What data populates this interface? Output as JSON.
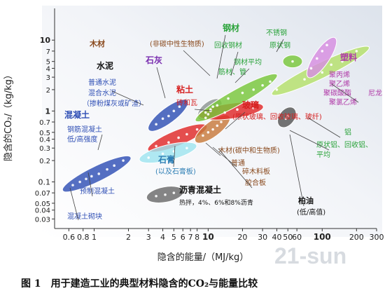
{
  "chart_data": {
    "type": "scatter",
    "xlabel": "隐含的能量/（MJ/kg）",
    "ylabel": "隐含的CO₂/（kg/kg）",
    "x_scale": "log",
    "y_scale": "log",
    "xlim": [
      0.45,
      300
    ],
    "ylim": [
      0.022,
      28
    ],
    "x_ticks": [
      0.6,
      0.8,
      1,
      2,
      3,
      4,
      5,
      6,
      7,
      8,
      10,
      20,
      30,
      40,
      50,
      60,
      100,
      200,
      300
    ],
    "x_tick_labels": [
      "0.6",
      "0.8",
      "1",
      "2",
      "3",
      "4",
      "5",
      "6",
      "7",
      "8",
      "10",
      "20",
      "30",
      "40",
      "50",
      "60",
      "100",
      "200",
      "300"
    ],
    "y_ticks": [
      0.03,
      0.04,
      0.05,
      0.07,
      0.1,
      0.2,
      0.3,
      0.4,
      0.5,
      0.7,
      1,
      2,
      3,
      4,
      5,
      7,
      10
    ],
    "y_tick_labels": [
      "0.03",
      "0.04",
      "0.05",
      "0.07",
      "0.1",
      "0.2",
      "0.3",
      "0.4",
      "0.5",
      "0.7",
      "1",
      "2",
      "3",
      "4",
      "5",
      "7",
      "10"
    ],
    "grid": false,
    "caption": "图 1　用于建造工业的典型材料隐含的CO₂与能量比较",
    "watermark": "21-sun",
    "groups": [
      {
        "name": "混凝土",
        "color": "#2f4fb5",
        "points": [
          [
            0.65,
            0.09
          ],
          [
            0.75,
            0.1
          ],
          [
            0.85,
            0.11
          ],
          [
            0.95,
            0.12
          ],
          [
            1.1,
            0.13
          ],
          [
            1.3,
            0.15
          ],
          [
            1.5,
            0.17
          ],
          [
            1.8,
            0.2
          ]
        ]
      },
      {
        "name": "水泥",
        "color": "#2f4fb5",
        "points": [
          [
            3.5,
            0.65
          ],
          [
            4.0,
            0.78
          ],
          [
            4.5,
            0.85
          ],
          [
            5.0,
            1.0
          ],
          [
            5.6,
            1.15
          ]
        ]
      },
      {
        "name": "粘土/砖和瓦",
        "color": "#e02828",
        "points": [
          [
            3.5,
            0.32
          ],
          [
            4.5,
            0.36
          ],
          [
            5.5,
            0.42
          ],
          [
            6.5,
            0.47
          ],
          [
            8.0,
            0.55
          ]
        ]
      },
      {
        "name": "石膏",
        "color": "#9fe4ef",
        "points": [
          [
            3.0,
            0.22
          ],
          [
            4.0,
            0.25
          ],
          [
            5.0,
            0.27
          ],
          [
            6.5,
            0.3
          ]
        ]
      },
      {
        "name": "沥青混凝土",
        "color": "#6a6a6a",
        "points": [
          [
            3.5,
            0.063
          ],
          [
            4.2,
            0.066
          ],
          [
            5.0,
            0.07
          ]
        ]
      },
      {
        "name": "木材(碳中和生物质)",
        "color": "#c87a3c",
        "points": [
          [
            9,
            0.45
          ],
          [
            10,
            0.5
          ],
          [
            11,
            0.55
          ],
          [
            12,
            0.62
          ],
          [
            13,
            0.7
          ]
        ]
      },
      {
        "name": "石灰",
        "color": "#8e9694",
        "points": [
          [
            9.5,
            0.95
          ],
          [
            10.5,
            1.05
          ],
          [
            11,
            1.15
          ]
        ]
      },
      {
        "name": "玻璃",
        "color": "#e02828",
        "points": [
          [
            10,
            0.9
          ],
          [
            14,
            0.95
          ],
          [
            18,
            1.05
          ],
          [
            25,
            1.1
          ]
        ]
      },
      {
        "name": "钢材",
        "color": "#79c73b",
        "points": [
          [
            9.5,
            0.8
          ],
          [
            10.5,
            1.0
          ],
          [
            12,
            1.2
          ],
          [
            15,
            1.5
          ],
          [
            20,
            1.8
          ],
          [
            25,
            2.0
          ],
          [
            30,
            2.3
          ],
          [
            35,
            2.6
          ]
        ]
      },
      {
        "name": "不锈钢",
        "color": "#79c73b",
        "points": [
          [
            55,
            5.0
          ]
        ]
      },
      {
        "name": "铝",
        "color": "#b5e06a",
        "points": [
          [
            40,
            2.0
          ],
          [
            70,
            2.8
          ],
          [
            100,
            3.5
          ],
          [
            150,
            5.0
          ],
          [
            200,
            7.0
          ]
        ]
      },
      {
        "name": "塑料",
        "color": "#d78ee0",
        "points": [
          [
            80,
            4.0
          ],
          [
            90,
            5.5
          ],
          [
            100,
            7.0
          ],
          [
            110,
            8.5
          ],
          [
            120,
            4.5
          ]
        ]
      },
      {
        "name": "柏油(低/高值)",
        "color": "#555555",
        "points": [
          [
            48,
            0.78
          ],
          [
            50,
            0.85
          ]
        ]
      }
    ],
    "annotations": [
      {
        "text": "木材",
        "color": "#8a4a1e"
      },
      {
        "text": "(非碳中性生物质)",
        "color": "#8a4a1e"
      },
      {
        "text": "钢材",
        "color": "#2aa33a"
      },
      {
        "text": "回收钢材",
        "color": "#2aa33a"
      },
      {
        "text": "不锈钢",
        "color": "#2aa33a"
      },
      {
        "text": "原状钢",
        "color": "#2aa33a"
      },
      {
        "text": "钢材平均",
        "color": "#2aa33a"
      },
      {
        "text": "筋材、管",
        "color": "#2aa33a"
      },
      {
        "text": "石灰",
        "color": "#7b2fb0"
      },
      {
        "text": "水泥",
        "color": "#111111"
      },
      {
        "text": "普通水泥",
        "color": "#2f4fb5"
      },
      {
        "text": "混合水泥",
        "color": "#2f4fb5"
      },
      {
        "text": "（掺粉煤灰或矿渣）",
        "color": "#2f4fb5"
      },
      {
        "text": "粘土",
        "color": "#d62020"
      },
      {
        "text": "砖和瓦",
        "color": "#d62020"
      },
      {
        "text": "塑料",
        "color": "#b03aa8"
      },
      {
        "text": "聚丙烯",
        "color": "#b03aa8"
      },
      {
        "text": "聚乙烯",
        "color": "#b03aa8"
      },
      {
        "text": "聚碳酸酯",
        "color": "#b03aa8"
      },
      {
        "text": "尼龙",
        "color": "#b03aa8"
      },
      {
        "text": "聚氯乙烯",
        "color": "#b03aa8"
      },
      {
        "text": "混凝土",
        "color": "#2f4fb5"
      },
      {
        "text": "钢筋混凝土",
        "color": "#2f4fb5"
      },
      {
        "text": "低/高强度",
        "color": "#2f4fb5"
      },
      {
        "text": "预制混凝土",
        "color": "#2f4fb5"
      },
      {
        "text": "混凝土砌块",
        "color": "#2f4fb5"
      },
      {
        "text": "玻璃",
        "color": "#d62020"
      },
      {
        "text": "(原状玻璃、回收玻璃、玻纤)",
        "color": "#d62020"
      },
      {
        "text": "铝",
        "color": "#2aa33a"
      },
      {
        "text": "原状铝、回收铝、",
        "color": "#2aa33a"
      },
      {
        "text": "平均",
        "color": "#2aa33a"
      },
      {
        "text": "木材(碳中和生物质)",
        "color": "#8a4a1e"
      },
      {
        "text": "普通",
        "color": "#8a4a1e"
      },
      {
        "text": "碎木料板",
        "color": "#8a4a1e"
      },
      {
        "text": "胶合板",
        "color": "#8a4a1e"
      },
      {
        "text": "石膏",
        "color": "#2f7fb5"
      },
      {
        "text": "(以及石膏板)",
        "color": "#2f7fb5"
      },
      {
        "text": "沥青混凝土",
        "color": "#111111"
      },
      {
        "text": "热拌，4%、6%和8%沥青",
        "color": "#111111"
      },
      {
        "text": "柏油",
        "color": "#111111"
      },
      {
        "text": "(低/高值)",
        "color": "#111111"
      }
    ]
  }
}
